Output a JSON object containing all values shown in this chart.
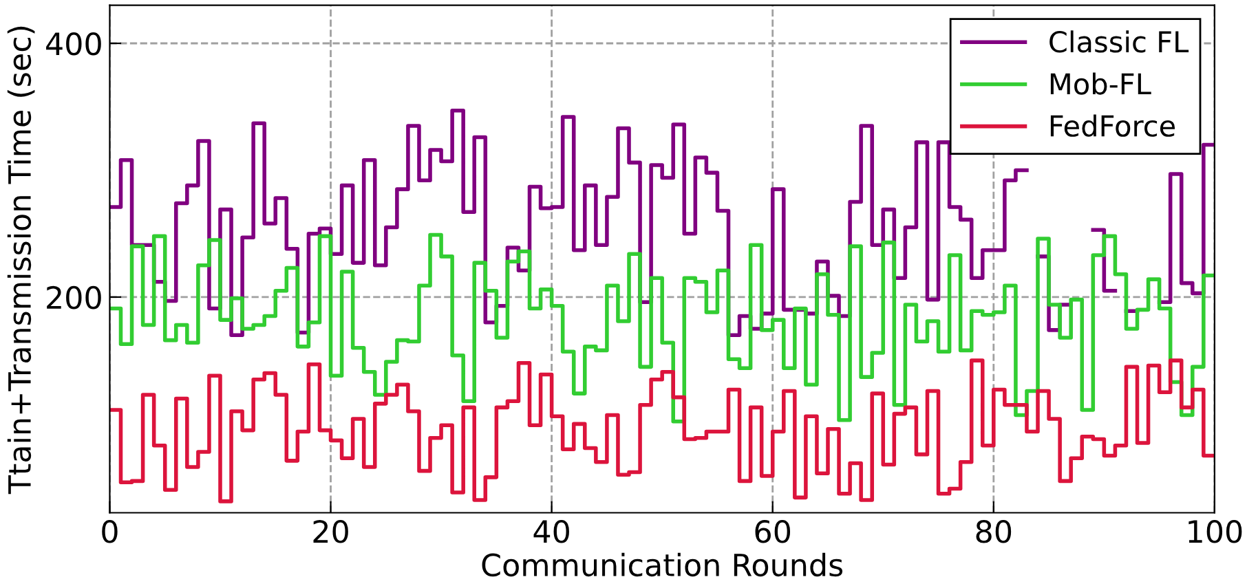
{
  "chart_data": {
    "type": "step",
    "xlabel": "Communication Rounds",
    "ylabel": "Ttain+Transmission Time (sec)",
    "xlim": [
      0,
      100
    ],
    "ylim": [
      30,
      430
    ],
    "xticks": [
      0,
      20,
      40,
      60,
      80,
      100
    ],
    "yticks": [
      200,
      400
    ],
    "grid": true,
    "legend": "top right",
    "line_style": "solid",
    "marker": "none",
    "x": [
      0,
      1,
      2,
      3,
      4,
      5,
      6,
      7,
      8,
      9,
      10,
      11,
      12,
      13,
      14,
      15,
      16,
      17,
      18,
      19,
      20,
      21,
      22,
      23,
      24,
      25,
      26,
      27,
      28,
      29,
      30,
      31,
      32,
      33,
      34,
      35,
      36,
      37,
      38,
      39,
      40,
      41,
      42,
      43,
      44,
      45,
      46,
      47,
      48,
      49,
      50,
      51,
      52,
      53,
      54,
      55,
      56,
      57,
      58,
      59,
      60,
      61,
      62,
      63,
      64,
      65,
      66,
      67,
      68,
      69,
      70,
      71,
      72,
      73,
      74,
      75,
      76,
      77,
      78,
      79,
      80,
      81,
      82,
      83,
      84,
      85,
      86,
      87,
      88,
      89,
      90,
      91,
      92,
      93,
      94,
      95,
      96,
      97,
      98,
      99,
      100
    ],
    "series": [
      {
        "name": "Classic FL",
        "color": "#800080",
        "values": [
          271,
          308,
          241,
          241,
          212,
          197,
          274,
          288,
          323,
          191,
          269,
          170,
          247,
          337,
          258,
          278,
          238,
          172,
          250,
          254,
          234,
          288,
          227,
          308,
          225,
          255,
          285,
          335,
          292,
          316,
          307,
          347,
          267,
          326,
          180,
          193,
          239,
          221,
          287,
          270,
          271,
          342,
          237,
          288,
          241,
          279,
          333,
          306,
          196,
          304,
          294,
          336,
          250,
          310,
          298,
          268,
          170,
          185,
          175,
          187,
          285,
          190,
          190,
          187,
          228,
          201,
          185,
          275,
          335,
          241,
          269,
          215,
          255,
          322,
          198,
          322,
          271,
          261,
          215,
          237,
          237,
          292,
          300,
          null,
          232,
          174,
          194,
          null,
          null,
          253,
          205,
          null,
          189,
          null,
          null,
          196,
          297,
          211,
          203,
          320,
          320
        ]
      },
      {
        "name": "Mob-FL",
        "color": "#32cd32",
        "values": [
          191,
          163,
          240,
          178,
          248,
          166,
          178,
          164,
          225,
          245,
          182,
          199,
          175,
          178,
          185,
          205,
          223,
          161,
          180,
          248,
          138,
          220,
          160,
          141,
          123,
          149,
          166,
          165,
          209,
          249,
          232,
          154,
          118,
          227,
          205,
          168,
          228,
          236,
          191,
          206,
          193,
          157,
          124,
          161,
          158,
          209,
          181,
          234,
          145,
          215,
          164,
          102,
          215,
          212,
          188,
          221,
          151,
          144,
          241,
          174,
          182,
          144,
          191,
          131,
          218,
          186,
          103,
          240,
          137,
          156,
          243,
          115,
          194,
          165,
          181,
          157,
          233,
          158,
          189,
          186,
          188,
          209,
          107,
          126,
          246,
          194,
          168,
          198,
          111,
          233,
          248,
          218,
          175,
          190,
          214,
          191,
          133,
          107,
          145,
          217,
          217
        ]
      },
      {
        "name": "FedForce",
        "color": "#dc143c",
        "values": [
          111,
          54,
          55,
          123,
          83,
          48,
          120,
          66,
          78,
          138,
          39,
          110,
          95,
          135,
          140,
          123,
          71,
          94,
          147,
          95,
          87,
          73,
          104,
          66,
          116,
          123,
          131,
          110,
          63,
          89,
          99,
          46,
          113,
          40,
          58,
          113,
          118,
          148,
          99,
          139,
          106,
          80,
          100,
          81,
          70,
          107,
          60,
          62,
          115,
          135,
          141,
          121,
          88,
          89,
          94,
          94,
          127,
          55,
          113,
          59,
          94,
          126,
          42,
          106,
          61,
          96,
          45,
          69,
          40,
          124,
          68,
          108,
          113,
          76,
          126,
          45,
          49,
          70,
          150,
          83,
          127,
          115,
          115,
          94,
          126,
          104,
          55,
          73,
          90,
          88,
          75,
          83,
          145,
          85,
          146,
          125,
          150,
          113,
          127,
          75,
          75
        ]
      }
    ]
  }
}
